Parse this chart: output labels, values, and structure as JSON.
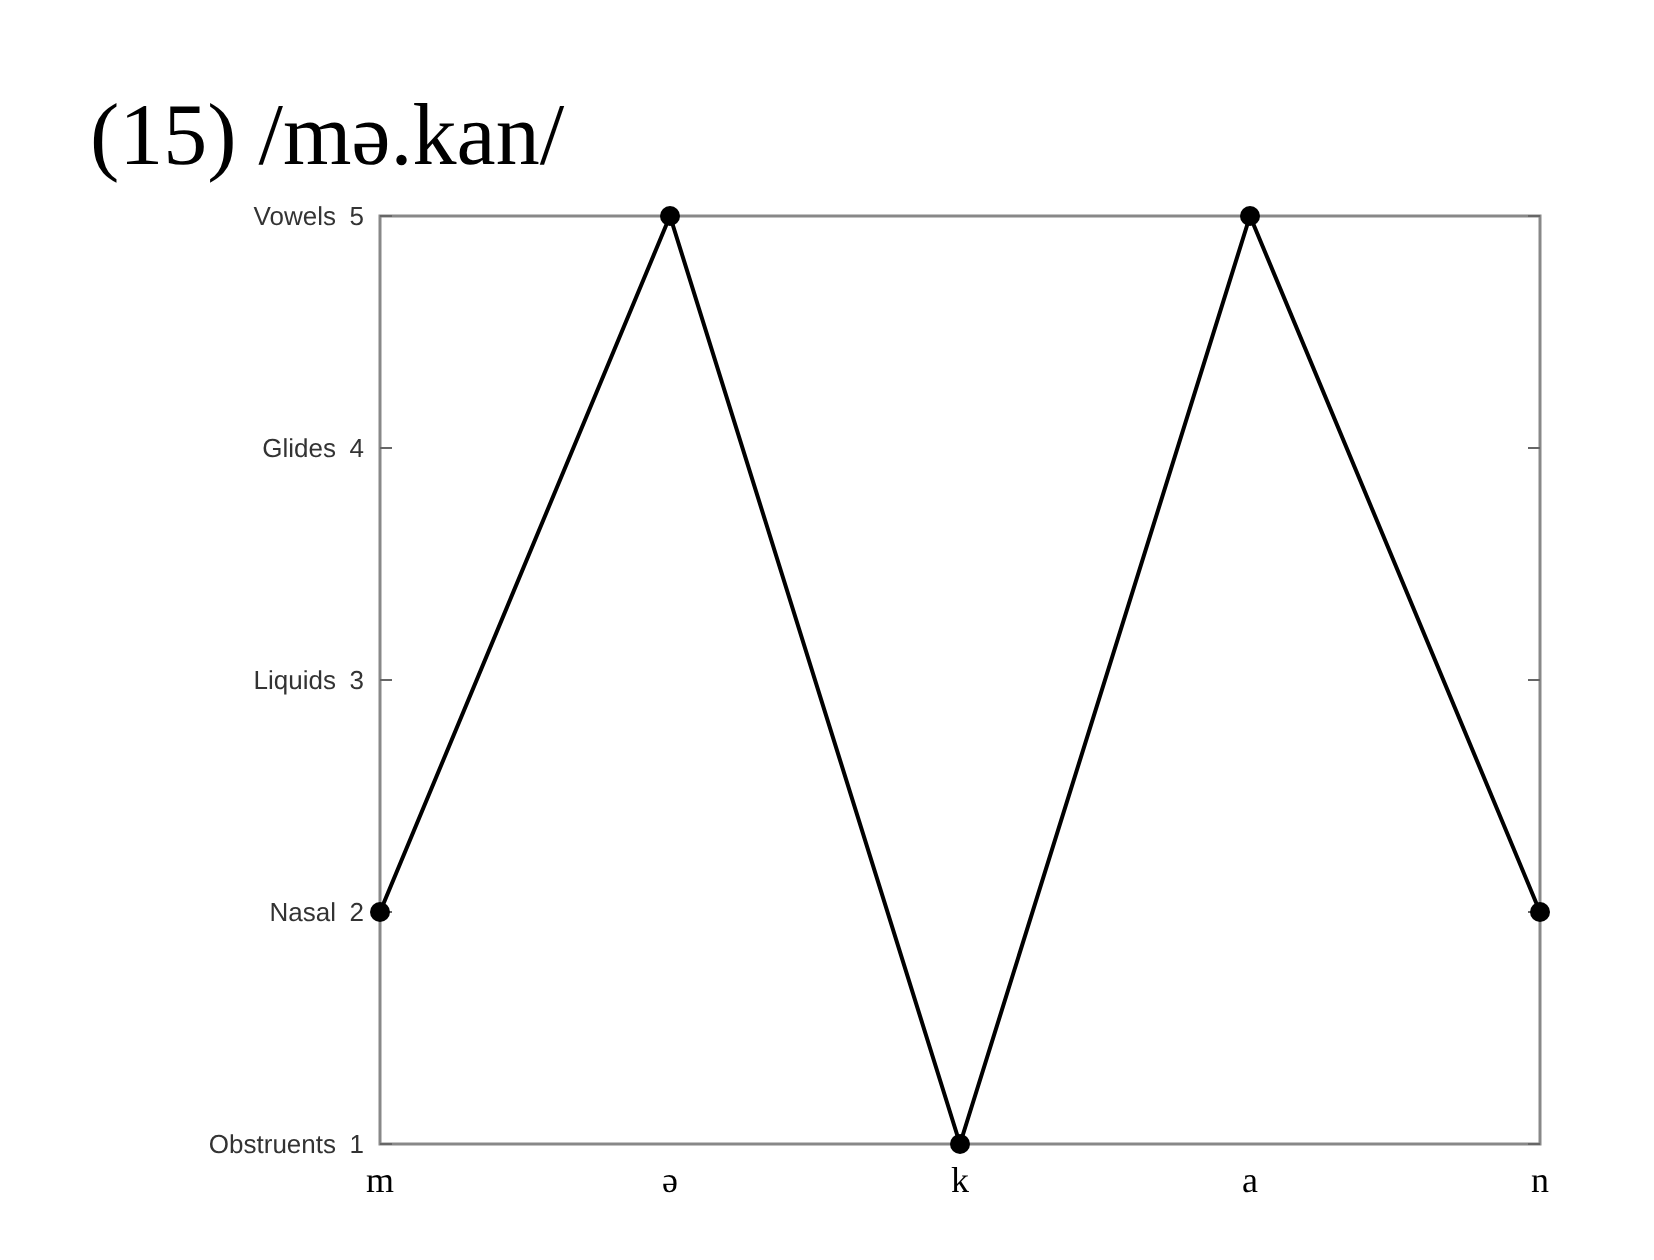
{
  "chart_data": {
    "type": "line",
    "title": "(15) /mə.kan/",
    "categories": [
      "m",
      "ə",
      "k",
      "a",
      "n"
    ],
    "values": [
      2,
      5,
      1,
      5,
      2
    ],
    "color": "#000000",
    "marker": "circle",
    "line_style": "solid",
    "grid": false,
    "ylim": [
      1,
      5
    ],
    "yticks": [
      1,
      2,
      3,
      4,
      5
    ],
    "annotations": [
      "Obstruents",
      "Nasal",
      "Liquids",
      "Glides",
      "Vowels"
    ]
  }
}
